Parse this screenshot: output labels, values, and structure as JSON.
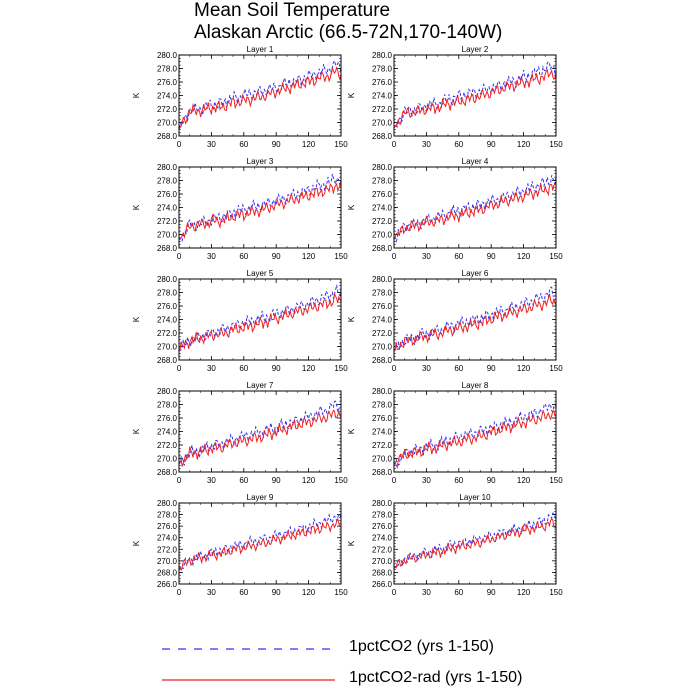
{
  "title_lines": [
    "Mean Soil Temperature",
    "Alaskan Arctic (66.5-72N,170-140W)"
  ],
  "legend": [
    {
      "label": "1pctCO2 (yrs 1-150)",
      "color": "#3333ee",
      "style": "dashed"
    },
    {
      "label": "1pctCO2-rad (yrs 1-150)",
      "color": "#ee2222",
      "style": "solid"
    }
  ],
  "chart_data": [
    {
      "type": "line",
      "title": "Layer 1",
      "ylabel": "K",
      "xlim": [
        0,
        150
      ],
      "ylim": [
        268,
        280
      ],
      "xticks": [
        0,
        30,
        60,
        90,
        120,
        150
      ],
      "yticks": [
        "268.0",
        "270.0",
        "272.0",
        "274.0",
        "276.0",
        "278.0",
        "280.0"
      ],
      "series": [
        {
          "name": "1pctCO2 (yrs 1-150)",
          "x": [
            0,
            10,
            20,
            30,
            40,
            50,
            60,
            70,
            80,
            90,
            100,
            110,
            120,
            130,
            140,
            145,
            150
          ],
          "values": [
            269.0,
            271.8,
            272.0,
            272.6,
            272.9,
            273.6,
            274.0,
            274.4,
            274.7,
            275.2,
            275.8,
            276.2,
            276.8,
            277.4,
            278.0,
            278.6,
            278.2
          ]
        },
        {
          "name": "1pctCO2-rad (yrs 1-150)",
          "x": [
            0,
            10,
            20,
            30,
            40,
            50,
            60,
            70,
            80,
            90,
            100,
            110,
            120,
            130,
            140,
            145,
            150
          ],
          "values": [
            269.2,
            271.6,
            271.8,
            272.2,
            272.3,
            272.9,
            273.2,
            273.6,
            274.0,
            274.6,
            275.1,
            275.6,
            276.0,
            276.6,
            277.0,
            277.6,
            277.2
          ]
        }
      ]
    },
    {
      "type": "line",
      "title": "Layer 2",
      "ylabel": "K",
      "xlim": [
        0,
        150
      ],
      "ylim": [
        268,
        280
      ],
      "xticks": [
        0,
        30,
        60,
        90,
        120,
        150
      ],
      "yticks": [
        "268.0",
        "270.0",
        "272.0",
        "274.0",
        "276.0",
        "278.0",
        "280.0"
      ],
      "series": [
        {
          "name": "1pctCO2 (yrs 1-150)",
          "x": [
            0,
            10,
            20,
            30,
            40,
            50,
            60,
            70,
            80,
            90,
            100,
            110,
            120,
            130,
            140,
            145,
            150
          ],
          "values": [
            269.2,
            271.6,
            271.8,
            272.4,
            272.8,
            273.4,
            273.9,
            274.3,
            274.6,
            275.1,
            275.6,
            276.1,
            276.7,
            277.3,
            277.9,
            278.5,
            278.0
          ]
        },
        {
          "name": "1pctCO2-rad (yrs 1-150)",
          "x": [
            0,
            10,
            20,
            30,
            40,
            50,
            60,
            70,
            80,
            90,
            100,
            110,
            120,
            130,
            140,
            145,
            150
          ],
          "values": [
            269.3,
            271.4,
            271.6,
            272.0,
            272.2,
            272.8,
            273.1,
            273.5,
            273.9,
            274.5,
            275.0,
            275.5,
            275.9,
            276.4,
            276.8,
            277.4,
            277.0
          ]
        }
      ]
    },
    {
      "type": "line",
      "title": "Layer 3",
      "ylabel": "K",
      "xlim": [
        0,
        150
      ],
      "ylim": [
        268,
        280
      ],
      "xticks": [
        0,
        30,
        60,
        90,
        120,
        150
      ],
      "yticks": [
        "268.0",
        "270.0",
        "272.0",
        "274.0",
        "276.0",
        "278.0",
        "280.0"
      ],
      "series": [
        {
          "name": "1pctCO2 (yrs 1-150)",
          "x": [
            0,
            10,
            20,
            30,
            40,
            50,
            60,
            70,
            80,
            90,
            100,
            110,
            120,
            130,
            140,
            145,
            150
          ],
          "values": [
            269.2,
            271.4,
            271.6,
            272.2,
            272.6,
            273.2,
            273.7,
            274.1,
            274.5,
            275.0,
            275.5,
            276.0,
            276.6,
            277.2,
            277.8,
            278.4,
            277.9
          ]
        },
        {
          "name": "1pctCO2-rad (yrs 1-150)",
          "x": [
            0,
            10,
            20,
            30,
            40,
            50,
            60,
            70,
            80,
            90,
            100,
            110,
            120,
            130,
            140,
            145,
            150
          ],
          "values": [
            269.3,
            271.2,
            271.5,
            271.9,
            272.1,
            272.7,
            273.0,
            273.4,
            273.8,
            274.4,
            274.9,
            275.4,
            275.8,
            276.3,
            276.7,
            277.3,
            276.9
          ]
        }
      ]
    },
    {
      "type": "line",
      "title": "Layer 4",
      "ylabel": "K",
      "xlim": [
        0,
        150
      ],
      "ylim": [
        268,
        280
      ],
      "xticks": [
        0,
        30,
        60,
        90,
        120,
        150
      ],
      "yticks": [
        "268.0",
        "270.0",
        "272.0",
        "274.0",
        "276.0",
        "278.0",
        "280.0"
      ],
      "series": [
        {
          "name": "1pctCO2 (yrs 1-150)",
          "x": [
            0,
            10,
            20,
            30,
            40,
            50,
            60,
            70,
            80,
            90,
            100,
            110,
            120,
            130,
            140,
            145,
            150
          ],
          "values": [
            269.3,
            271.2,
            271.5,
            272.1,
            272.5,
            273.1,
            273.6,
            274.0,
            274.4,
            274.9,
            275.4,
            275.9,
            276.5,
            277.1,
            277.7,
            278.3,
            277.8
          ]
        },
        {
          "name": "1pctCO2-rad (yrs 1-150)",
          "x": [
            0,
            10,
            20,
            30,
            40,
            50,
            60,
            70,
            80,
            90,
            100,
            110,
            120,
            130,
            140,
            145,
            150
          ],
          "values": [
            269.4,
            271.0,
            271.3,
            271.8,
            272.0,
            272.6,
            272.9,
            273.3,
            273.7,
            274.3,
            274.8,
            275.3,
            275.7,
            276.2,
            276.6,
            277.1,
            276.8
          ]
        }
      ]
    },
    {
      "type": "line",
      "title": "Layer 5",
      "ylabel": "K",
      "xlim": [
        0,
        150
      ],
      "ylim": [
        268,
        280
      ],
      "xticks": [
        0,
        30,
        60,
        90,
        120,
        150
      ],
      "yticks": [
        "268.0",
        "270.0",
        "272.0",
        "274.0",
        "276.0",
        "278.0",
        "280.0"
      ],
      "series": [
        {
          "name": "1pctCO2 (yrs 1-150)",
          "x": [
            0,
            10,
            20,
            30,
            40,
            50,
            60,
            70,
            80,
            90,
            100,
            110,
            120,
            130,
            140,
            145,
            150
          ],
          "values": [
            269.3,
            271.0,
            271.4,
            272.0,
            272.4,
            273.0,
            273.5,
            273.9,
            274.3,
            274.8,
            275.3,
            275.8,
            276.4,
            277.0,
            277.6,
            278.2,
            277.7
          ]
        },
        {
          "name": "1pctCO2-rad (yrs 1-150)",
          "x": [
            0,
            10,
            20,
            30,
            40,
            50,
            60,
            70,
            80,
            90,
            100,
            110,
            120,
            130,
            140,
            145,
            150
          ],
          "values": [
            269.4,
            270.9,
            271.2,
            271.7,
            271.9,
            272.5,
            272.8,
            273.2,
            273.6,
            274.2,
            274.7,
            275.2,
            275.6,
            276.1,
            276.5,
            277.0,
            276.7
          ]
        }
      ]
    },
    {
      "type": "line",
      "title": "Layer 6",
      "ylabel": "K",
      "xlim": [
        0,
        150
      ],
      "ylim": [
        268,
        280
      ],
      "xticks": [
        0,
        30,
        60,
        90,
        120,
        150
      ],
      "yticks": [
        "268.0",
        "270.0",
        "272.0",
        "274.0",
        "276.0",
        "278.0",
        "280.0"
      ],
      "series": [
        {
          "name": "1pctCO2 (yrs 1-150)",
          "x": [
            0,
            10,
            20,
            30,
            40,
            50,
            60,
            70,
            80,
            90,
            100,
            110,
            120,
            130,
            140,
            145,
            150
          ],
          "values": [
            269.3,
            270.9,
            271.3,
            271.9,
            272.3,
            272.9,
            273.4,
            273.8,
            274.2,
            274.7,
            275.2,
            275.7,
            276.3,
            276.9,
            277.5,
            278.1,
            277.6
          ]
        },
        {
          "name": "1pctCO2-rad (yrs 1-150)",
          "x": [
            0,
            10,
            20,
            30,
            40,
            50,
            60,
            70,
            80,
            90,
            100,
            110,
            120,
            130,
            140,
            145,
            150
          ],
          "values": [
            269.4,
            270.8,
            271.1,
            271.6,
            271.8,
            272.4,
            272.7,
            273.1,
            273.5,
            274.1,
            274.6,
            275.1,
            275.5,
            276.0,
            276.4,
            276.9,
            276.6
          ]
        }
      ]
    },
    {
      "type": "line",
      "title": "Layer 7",
      "ylabel": "K",
      "xlim": [
        0,
        150
      ],
      "ylim": [
        268,
        280
      ],
      "xticks": [
        0,
        30,
        60,
        90,
        120,
        150
      ],
      "yticks": [
        "268.0",
        "270.0",
        "272.0",
        "274.0",
        "276.0",
        "278.0",
        "280.0"
      ],
      "series": [
        {
          "name": "1pctCO2 (yrs 1-150)",
          "x": [
            0,
            10,
            20,
            30,
            40,
            50,
            60,
            70,
            80,
            90,
            100,
            110,
            120,
            130,
            140,
            145,
            150
          ],
          "values": [
            269.2,
            270.8,
            271.2,
            271.8,
            272.2,
            272.8,
            273.3,
            273.7,
            274.1,
            274.6,
            275.1,
            275.6,
            276.2,
            276.8,
            277.4,
            278.0,
            277.5
          ]
        },
        {
          "name": "1pctCO2-rad (yrs 1-150)",
          "x": [
            0,
            10,
            20,
            30,
            40,
            50,
            60,
            70,
            80,
            90,
            100,
            110,
            120,
            130,
            140,
            145,
            150
          ],
          "values": [
            269.3,
            270.7,
            271.0,
            271.5,
            271.7,
            272.3,
            272.6,
            273.0,
            273.4,
            274.0,
            274.5,
            275.0,
            275.4,
            275.9,
            276.3,
            276.8,
            276.5
          ]
        }
      ]
    },
    {
      "type": "line",
      "title": "Layer 8",
      "ylabel": "K",
      "xlim": [
        0,
        150
      ],
      "ylim": [
        268,
        280
      ],
      "xticks": [
        0,
        30,
        60,
        90,
        120,
        150
      ],
      "yticks": [
        "268.0",
        "270.0",
        "272.0",
        "274.0",
        "276.0",
        "278.0",
        "280.0"
      ],
      "series": [
        {
          "name": "1pctCO2 (yrs 1-150)",
          "x": [
            0,
            10,
            20,
            30,
            40,
            50,
            60,
            70,
            80,
            90,
            100,
            110,
            120,
            130,
            140,
            145,
            150
          ],
          "values": [
            269.1,
            270.7,
            271.1,
            271.7,
            272.1,
            272.7,
            273.2,
            273.6,
            274.0,
            274.5,
            275.0,
            275.5,
            276.1,
            276.7,
            277.3,
            277.9,
            277.4
          ]
        },
        {
          "name": "1pctCO2-rad (yrs 1-150)",
          "x": [
            0,
            10,
            20,
            30,
            40,
            50,
            60,
            70,
            80,
            90,
            100,
            110,
            120,
            130,
            140,
            145,
            150
          ],
          "values": [
            269.2,
            270.6,
            270.9,
            271.4,
            271.6,
            272.2,
            272.5,
            272.9,
            273.3,
            273.9,
            274.4,
            274.9,
            275.3,
            275.8,
            276.2,
            276.7,
            276.4
          ]
        }
      ]
    },
    {
      "type": "line",
      "title": "Layer 9",
      "ylabel": "K",
      "xlim": [
        0,
        150
      ],
      "ylim": [
        266,
        280
      ],
      "xticks": [
        0,
        30,
        60,
        90,
        120,
        150
      ],
      "yticks": [
        "266.0",
        "268.0",
        "270.0",
        "272.0",
        "274.0",
        "276.0",
        "278.0",
        "280.0"
      ],
      "series": [
        {
          "name": "1pctCO2 (yrs 1-150)",
          "x": [
            0,
            10,
            20,
            30,
            40,
            50,
            60,
            70,
            80,
            90,
            100,
            110,
            120,
            130,
            140,
            145,
            150
          ],
          "values": [
            268.6,
            270.2,
            270.7,
            271.3,
            271.8,
            272.4,
            272.9,
            273.4,
            273.8,
            274.3,
            274.8,
            275.3,
            275.9,
            276.5,
            277.1,
            277.7,
            277.2
          ]
        },
        {
          "name": "1pctCO2-rad (yrs 1-150)",
          "x": [
            0,
            10,
            20,
            30,
            40,
            50,
            60,
            70,
            80,
            90,
            100,
            110,
            120,
            130,
            140,
            145,
            150
          ],
          "values": [
            268.7,
            270.1,
            270.5,
            271.0,
            271.3,
            271.9,
            272.3,
            272.7,
            273.1,
            273.7,
            274.2,
            274.7,
            275.1,
            275.6,
            276.0,
            276.5,
            276.1
          ]
        }
      ]
    },
    {
      "type": "line",
      "title": "Layer 10",
      "ylabel": "K",
      "xlim": [
        0,
        150
      ],
      "ylim": [
        266,
        280
      ],
      "xticks": [
        0,
        30,
        60,
        90,
        120,
        150
      ],
      "yticks": [
        "266.0",
        "268.0",
        "270.0",
        "272.0",
        "274.0",
        "276.0",
        "278.0",
        "280.0"
      ],
      "series": [
        {
          "name": "1pctCO2 (yrs 1-150)",
          "x": [
            0,
            10,
            20,
            30,
            40,
            50,
            60,
            70,
            80,
            90,
            100,
            110,
            120,
            130,
            140,
            145,
            150
          ],
          "values": [
            268.7,
            270.3,
            270.8,
            271.4,
            271.9,
            272.5,
            273.0,
            273.4,
            273.8,
            274.3,
            274.8,
            275.3,
            275.8,
            276.4,
            277.0,
            277.7,
            277.3
          ]
        },
        {
          "name": "1pctCO2-rad (yrs 1-150)",
          "x": [
            0,
            10,
            20,
            30,
            40,
            50,
            60,
            70,
            80,
            90,
            100,
            110,
            120,
            130,
            140,
            145,
            150
          ],
          "values": [
            268.8,
            270.2,
            270.6,
            271.1,
            271.4,
            272.0,
            272.4,
            272.8,
            273.2,
            273.8,
            274.3,
            274.8,
            275.2,
            275.7,
            276.1,
            276.6,
            276.2
          ]
        }
      ]
    }
  ]
}
